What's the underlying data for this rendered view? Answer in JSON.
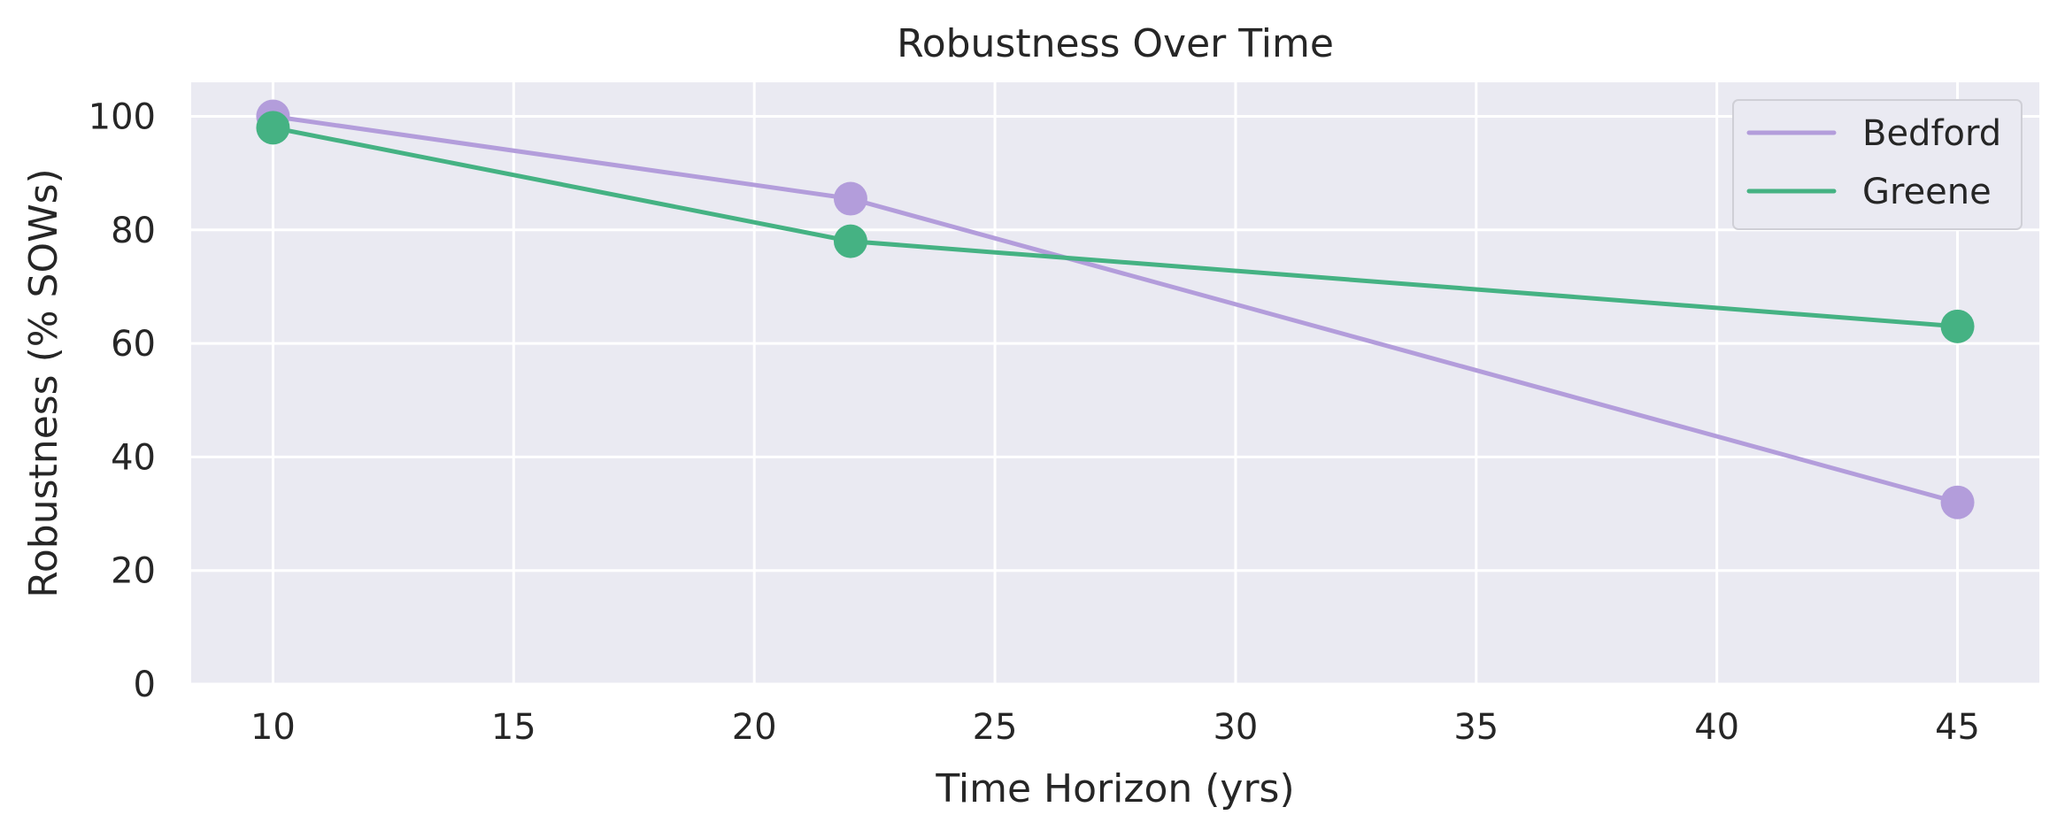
{
  "chart_data": {
    "type": "line",
    "title": "Robustness Over Time",
    "xlabel": "Time Horizon (yrs)",
    "ylabel": "Robustness (% SOWs)",
    "xlim": [
      8.3,
      46.7
    ],
    "ylim": [
      0,
      106
    ],
    "xticks": [
      10,
      15,
      20,
      25,
      30,
      35,
      40,
      45
    ],
    "yticks": [
      0,
      20,
      40,
      60,
      80,
      100
    ],
    "grid": true,
    "legend_position": "top-right",
    "series": [
      {
        "name": "Bedford",
        "color": "#b39ddb",
        "x": [
          10,
          22,
          45
        ],
        "y": [
          100,
          85.5,
          32
        ]
      },
      {
        "name": "Greene",
        "color": "#45b283",
        "x": [
          10,
          22,
          45
        ],
        "y": [
          98,
          78,
          63
        ]
      }
    ],
    "colors": {
      "plot_background": "#eaeaf2",
      "grid": "#ffffff",
      "text": "#262626"
    }
  }
}
